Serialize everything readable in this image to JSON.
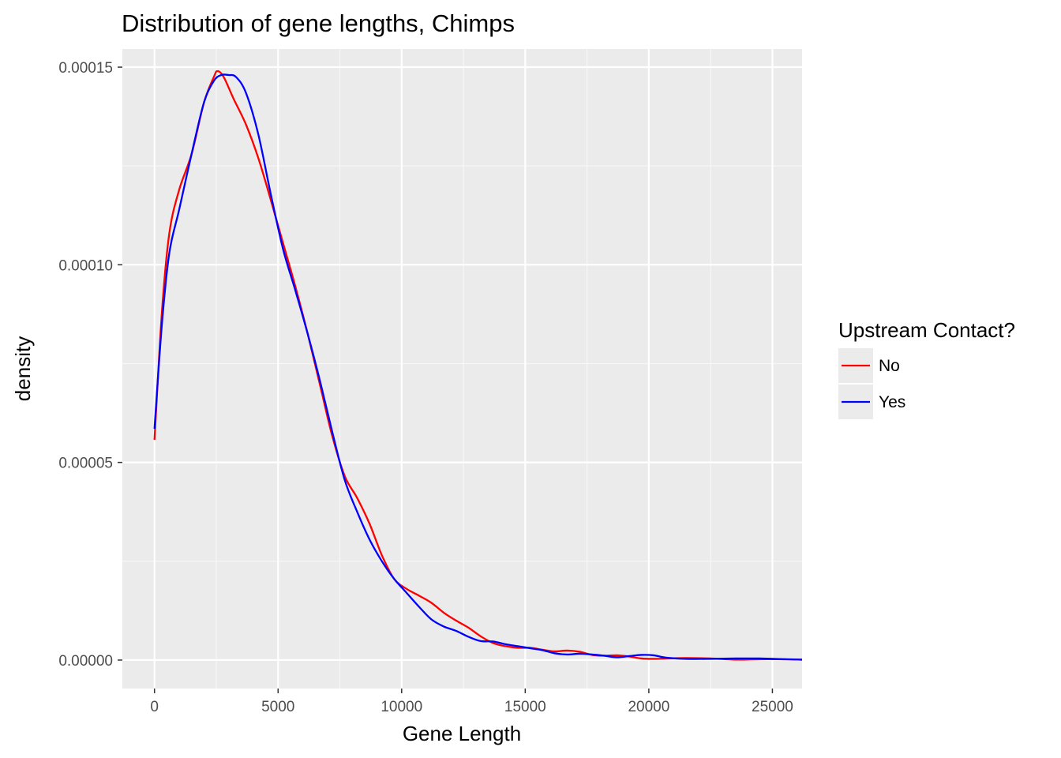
{
  "chart_data": {
    "type": "line",
    "title": "Distribution of gene lengths, Chimps",
    "xlabel": "Gene Length",
    "ylabel": "density",
    "xlim": [
      -1300,
      26200
    ],
    "ylim": [
      -7.2e-06,
      0.0001546
    ],
    "x_ticks": [
      0,
      5000,
      10000,
      15000,
      20000,
      25000
    ],
    "x_tick_labels": [
      "0",
      "5000",
      "10000",
      "15000",
      "20000",
      "25000"
    ],
    "y_ticks": [
      0,
      5e-05,
      0.0001,
      0.00015
    ],
    "y_tick_labels": [
      "0.00000",
      "0.00005",
      "0.00010",
      "0.00015"
    ],
    "grid": true,
    "legend": {
      "title": "Upstream Contact?",
      "position": "right"
    },
    "series": [
      {
        "name": "No",
        "color": "#ff0000",
        "x": [
          0,
          300,
          600,
          1000,
          1500,
          2000,
          2400,
          2550,
          2800,
          3200,
          3700,
          4200,
          4700,
          5200,
          5700,
          6200,
          6700,
          7200,
          7700,
          8200,
          8700,
          9200,
          9700,
          10200,
          10700,
          11200,
          11700,
          12200,
          12700,
          13200,
          13700,
          14200,
          14700,
          15200,
          15700,
          16200,
          16700,
          17200,
          17700,
          18200,
          18700,
          19200,
          19700,
          20200,
          20700,
          21500,
          22500,
          23500,
          24500,
          25500,
          26200
        ],
        "y": [
          5.57e-05,
          8.8e-05,
          0.000108,
          0.000119,
          0.000128,
          0.000141,
          0.0001475,
          0.000149,
          0.0001475,
          0.000142,
          0.0001355,
          0.000127,
          0.0001165,
          0.0001055,
          9.45e-05,
          8.25e-05,
          6.95e-05,
          5.65e-05,
          4.65e-05,
          4.1e-05,
          3.45e-05,
          2.65e-05,
          2.05e-05,
          1.8e-05,
          1.63e-05,
          1.45e-05,
          1.2e-05,
          1e-05,
          8.2e-06,
          6e-06,
          4.3e-06,
          3.5e-06,
          3.1e-06,
          3.1e-06,
          2.6e-06,
          2.2e-06,
          2.4e-06,
          2.1e-06,
          1.3e-06,
          1.1e-06,
          1.2e-06,
          9e-07,
          4e-07,
          3e-07,
          4e-07,
          5e-07,
          4e-07,
          1e-07,
          2e-07,
          2e-07,
          1e-07
        ]
      },
      {
        "name": "Yes",
        "color": "#0000ff",
        "x": [
          0,
          300,
          600,
          1000,
          1500,
          2000,
          2400,
          2700,
          3000,
          3300,
          3700,
          4200,
          4700,
          5200,
          5700,
          6200,
          6700,
          7200,
          7700,
          8200,
          8700,
          9200,
          9700,
          10200,
          10700,
          11200,
          11700,
          12200,
          12700,
          13200,
          13700,
          14200,
          14700,
          15200,
          15700,
          16200,
          16700,
          17200,
          17700,
          18200,
          18700,
          19200,
          19700,
          20200,
          20700,
          21500,
          22500,
          23500,
          24500,
          25500,
          26200
        ],
        "y": [
          5.85e-05,
          8.5e-05,
          0.000103,
          0.000114,
          0.000128,
          0.000141,
          0.0001465,
          0.000148,
          0.000148,
          0.0001475,
          0.0001435,
          0.000133,
          0.000118,
          0.000104,
          9.35e-05,
          8.25e-05,
          7.05e-05,
          5.75e-05,
          4.55e-05,
          3.75e-05,
          3.05e-05,
          2.5e-05,
          2.05e-05,
          1.7e-05,
          1.35e-05,
          1.03e-05,
          8.5e-06,
          7.4e-06,
          5.9e-06,
          4.8e-06,
          4.7e-06,
          4e-06,
          3.5e-06,
          3e-06,
          2.5e-06,
          1.7e-06,
          1.4e-06,
          1.6e-06,
          1.4e-06,
          1.1e-06,
          7e-07,
          1e-06,
          1.3e-06,
          1.2e-06,
          6e-07,
          3e-07,
          3e-07,
          4e-07,
          4e-07,
          2e-07,
          1e-07
        ]
      }
    ]
  }
}
